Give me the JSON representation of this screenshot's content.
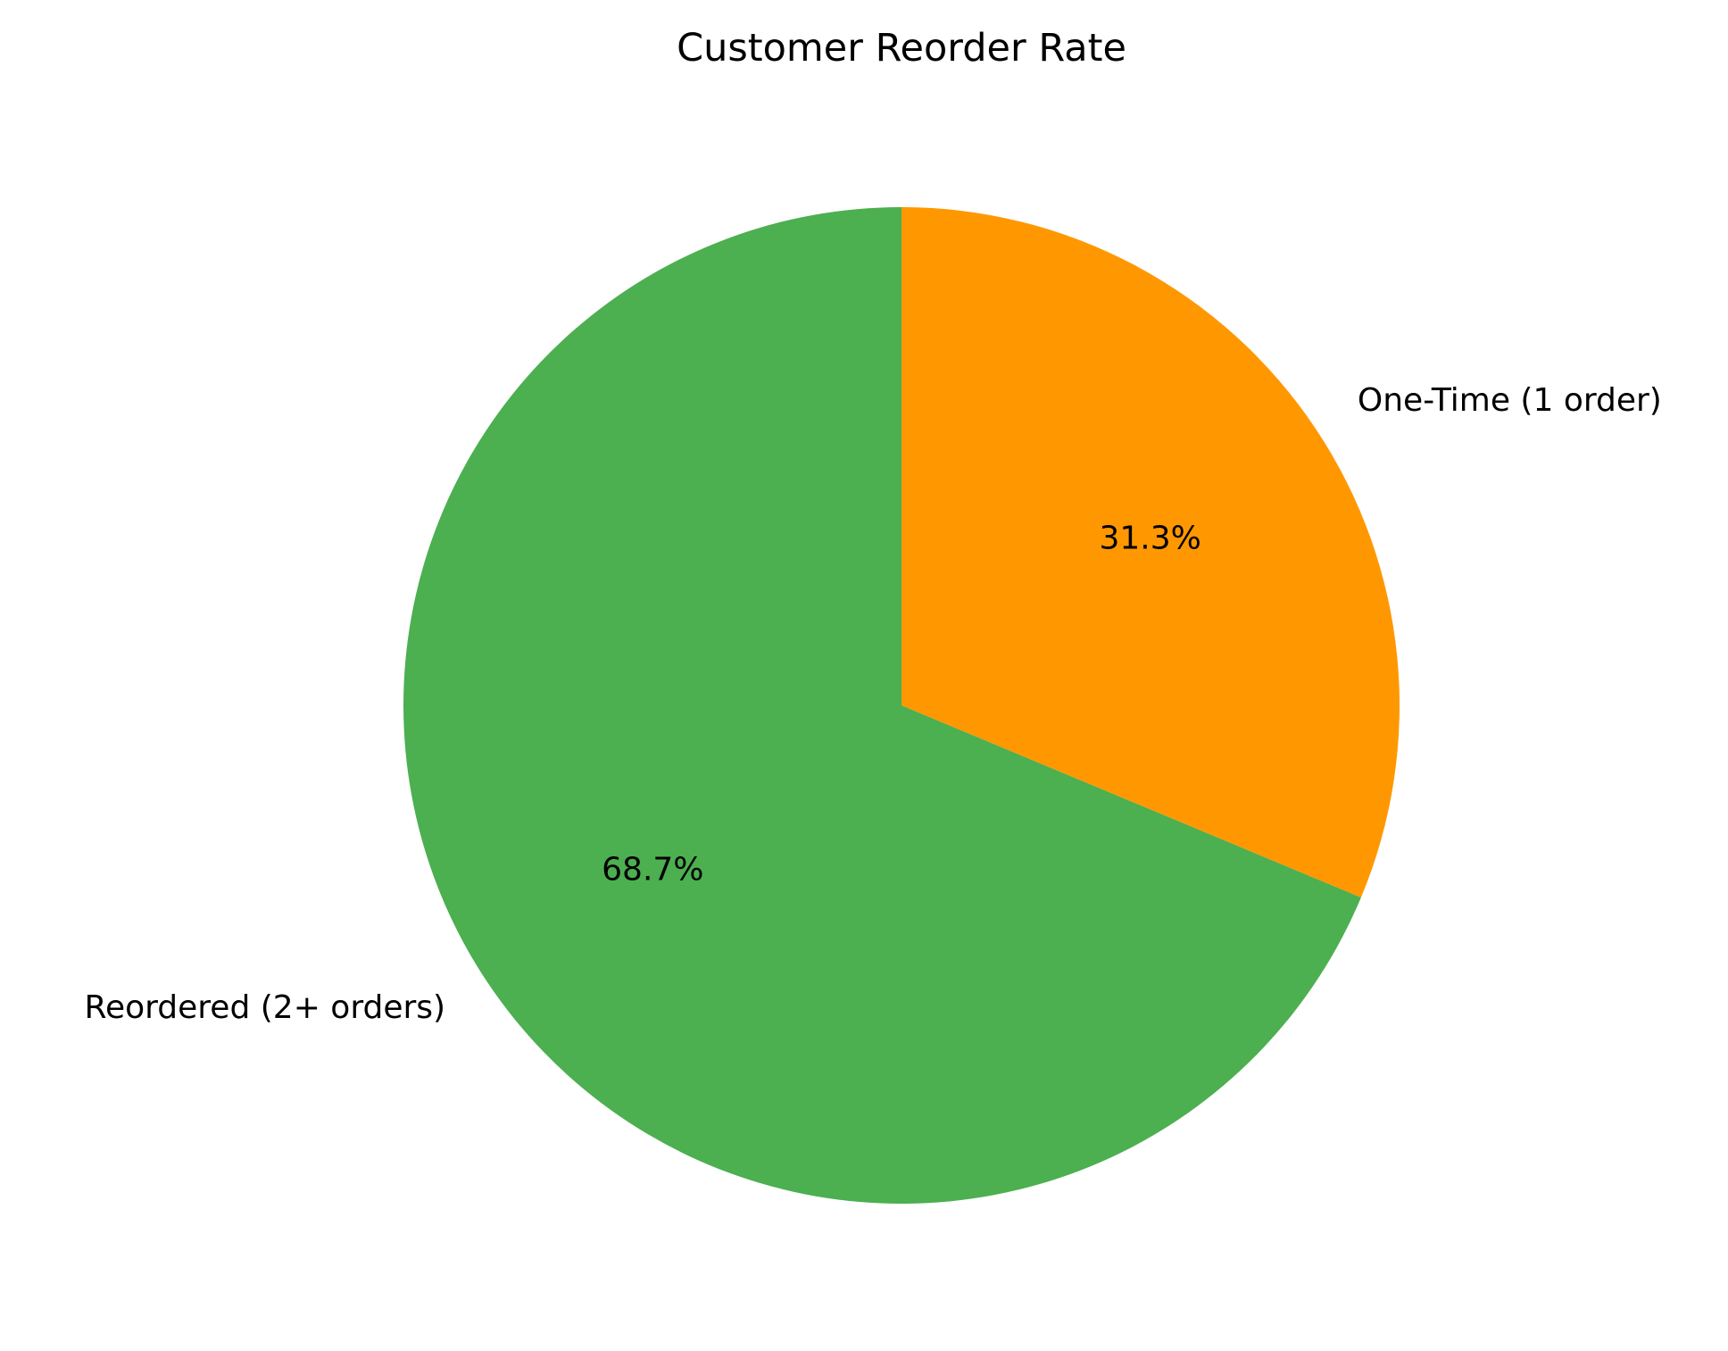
{
  "chart_data": {
    "type": "pie",
    "title": "Customer Reorder Rate",
    "start_angle_deg": 90,
    "direction": "clockwise",
    "slices": [
      {
        "label": "One-Time (1 order)",
        "value": 31.3,
        "pct_label": "31.3%",
        "color": "#ff9800"
      },
      {
        "label": "Reordered (2+ orders)",
        "value": 68.7,
        "pct_label": "68.7%",
        "color": "#4caf50"
      }
    ]
  }
}
